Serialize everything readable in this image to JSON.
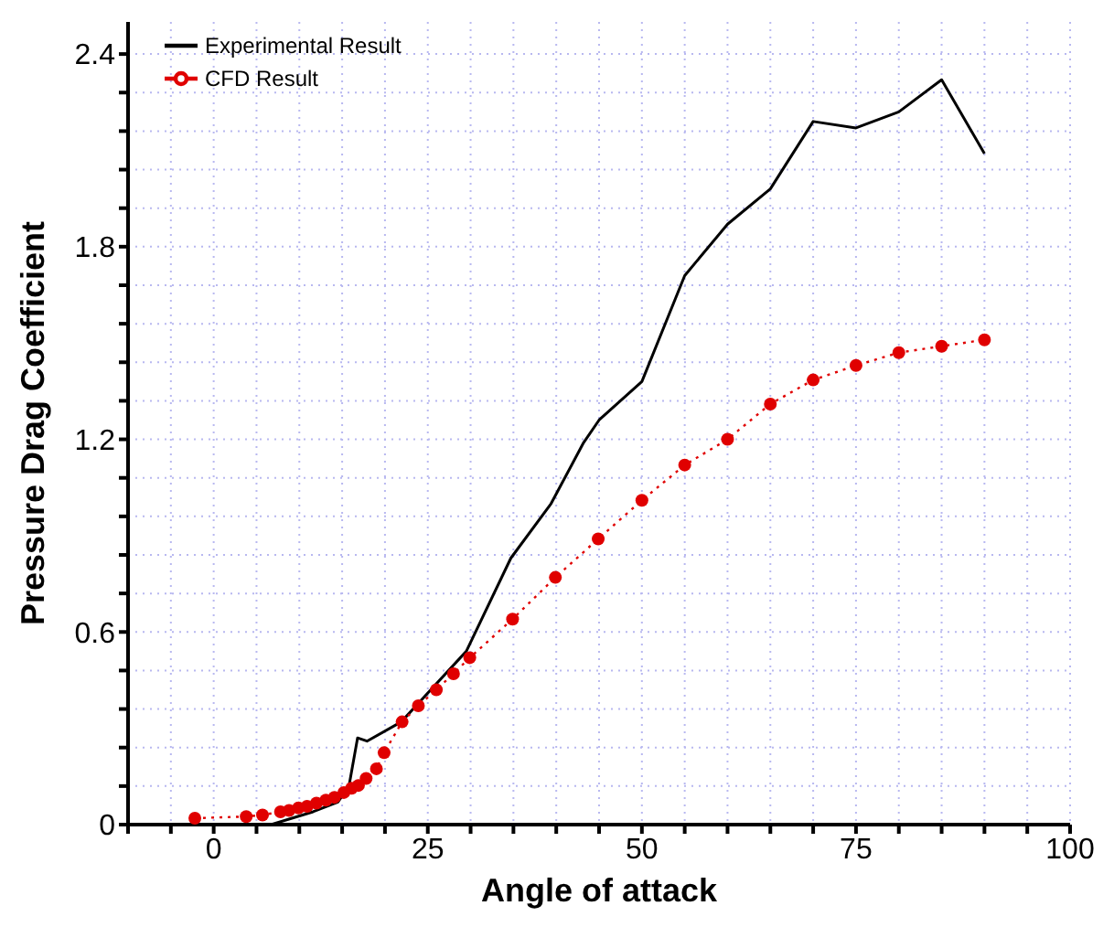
{
  "chart_data": {
    "type": "line",
    "xlabel": "Angle of attack",
    "ylabel": "Pressure Drag Coefficient",
    "xlim": [
      -10,
      100
    ],
    "xticks": [
      {
        "value": -10,
        "label": null
      },
      {
        "value": -5,
        "label": null
      },
      0,
      {
        "value": 5,
        "label": null
      },
      {
        "value": 10,
        "label": null
      },
      {
        "value": 15,
        "label": null
      },
      {
        "value": 20,
        "label": null
      },
      25,
      {
        "value": 30,
        "label": null
      },
      {
        "value": 35,
        "label": null
      },
      {
        "value": 40,
        "label": null
      },
      {
        "value": 45,
        "label": null
      },
      50,
      {
        "value": 55,
        "label": null
      },
      {
        "value": 60,
        "label": null
      },
      {
        "value": 65,
        "label": null
      },
      {
        "value": 70,
        "label": null
      },
      75,
      {
        "value": 80,
        "label": null
      },
      {
        "value": 85,
        "label": null
      },
      {
        "value": 90,
        "label": null
      },
      {
        "value": 95,
        "label": null
      },
      100
    ],
    "ylim": [
      0,
      2.5
    ],
    "yticks": [
      0,
      {
        "value": 0.12,
        "label": null
      },
      {
        "value": 0.24,
        "label": null
      },
      {
        "value": 0.36,
        "label": null
      },
      {
        "value": 0.48,
        "label": null
      },
      0.6,
      {
        "value": 0.72,
        "label": null
      },
      {
        "value": 0.84,
        "label": null
      },
      {
        "value": 0.96,
        "label": null
      },
      {
        "value": 1.08,
        "label": null
      },
      1.2,
      {
        "value": 1.32,
        "label": null
      },
      {
        "value": 1.44,
        "label": null
      },
      {
        "value": 1.56,
        "label": null
      },
      {
        "value": 1.68,
        "label": null
      },
      1.8,
      {
        "value": 1.92,
        "label": null
      },
      {
        "value": 2.04,
        "label": null
      },
      {
        "value": 2.16,
        "label": null
      },
      {
        "value": 2.28,
        "label": null
      },
      2.4
    ],
    "grid": true,
    "legend": "top left",
    "series": [
      {
        "name": "Experimental Result",
        "color": "#000000",
        "marker": "none",
        "line_style": "solid",
        "x": [
          0,
          6.7,
          11.6,
          14.5,
          15.8,
          16.8,
          17.9,
          21.9,
          29.5,
          34.7,
          39.4,
          43.2,
          45,
          50,
          55,
          60,
          65,
          70,
          75,
          80,
          85,
          90
        ],
        "values": [
          0,
          0,
          0.04,
          0.07,
          0.12,
          0.27,
          0.26,
          0.32,
          0.54,
          0.83,
          1.0,
          1.19,
          1.26,
          1.38,
          1.71,
          1.87,
          1.98,
          2.19,
          2.17,
          2.22,
          2.32,
          2.09
        ]
      },
      {
        "name": "CFD Result",
        "color": "#e00000",
        "marker": "circle",
        "line_style": "dotted",
        "x": [
          -2.2,
          3.8,
          5.7,
          7.8,
          8.8,
          9.9,
          10.9,
          12,
          13.1,
          14.1,
          15.2,
          16.1,
          16.9,
          17.8,
          19,
          19.9,
          22,
          23.9,
          26,
          28,
          29.9,
          34.9,
          39.9,
          44.9,
          50,
          55,
          60,
          65,
          70,
          75,
          80,
          85,
          90
        ],
        "values": [
          0.02,
          0.025,
          0.03,
          0.04,
          0.044,
          0.052,
          0.057,
          0.067,
          0.076,
          0.085,
          0.1,
          0.113,
          0.122,
          0.144,
          0.174,
          0.224,
          0.32,
          0.37,
          0.42,
          0.47,
          0.52,
          0.64,
          0.77,
          0.89,
          1.01,
          1.12,
          1.2,
          1.31,
          1.385,
          1.43,
          1.47,
          1.49,
          1.51
        ]
      }
    ]
  }
}
